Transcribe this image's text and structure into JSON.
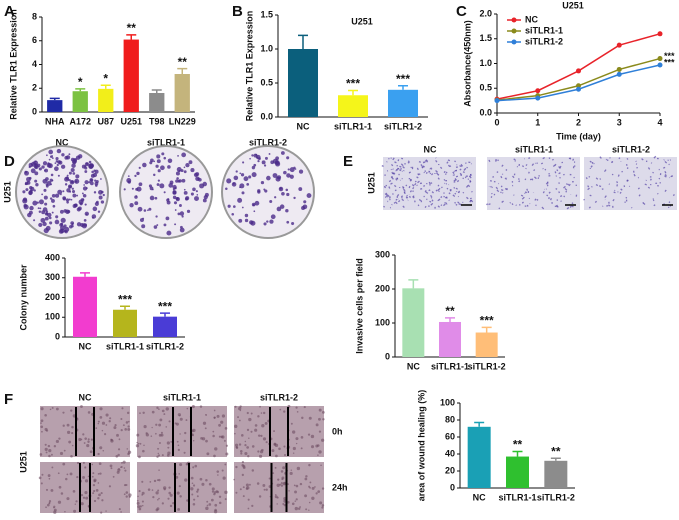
{
  "panel_labels": [
    "A",
    "B",
    "C",
    "D",
    "E",
    "F"
  ],
  "images": {
    "D": {
      "columns": [
        "NC",
        "siTLR1-1",
        "siTLR1-2"
      ],
      "side_label": "U251"
    },
    "E": {
      "columns": [
        "NC",
        "siTLR1-1",
        "siTLR1-2"
      ],
      "side_label": "U251"
    },
    "F": {
      "columns": [
        "NC",
        "siTLR1-1",
        "siTLR1-2"
      ],
      "rows": [
        "0h",
        "24h"
      ],
      "side_label": "U251"
    }
  },
  "chart_data": [
    {
      "type": "bar",
      "y_label": "Relative TLR1 Expression",
      "categories": [
        "NHA",
        "A172",
        "U87",
        "U251",
        "T98",
        "LN229"
      ],
      "values": [
        1.0,
        1.75,
        1.95,
        6.1,
        1.6,
        3.2
      ],
      "errors": [
        0.15,
        0.2,
        0.3,
        0.4,
        0.25,
        0.45
      ],
      "colors": [
        "#1f2aa6",
        "#7cc242",
        "#f2ee1a",
        "#f01c1c",
        "#8c8c8c",
        "#c4b47c"
      ],
      "annotations": [
        null,
        "*",
        "*",
        "**",
        null,
        "**"
      ],
      "ylim": [
        0,
        8
      ],
      "yticks": [
        0,
        2,
        4,
        6,
        8
      ]
    },
    {
      "type": "bar",
      "title": "U251",
      "y_label": "Relative TLR1 Expression",
      "categories": [
        "NC",
        "siTLR1-1",
        "siTLR1-2"
      ],
      "values": [
        1.0,
        0.32,
        0.4
      ],
      "errors": [
        0.2,
        0.07,
        0.06
      ],
      "colors": [
        "#0b5f7c",
        "#f5f51a",
        "#3aa0f0"
      ],
      "annotations": [
        null,
        "***",
        "***"
      ],
      "ylim": [
        0,
        1.5
      ],
      "yticks": [
        {
          "value": 0,
          "label": "0.0"
        },
        {
          "value": 0.5,
          "label": "0.5"
        },
        {
          "value": 1,
          "label": "1.0"
        },
        {
          "value": 1.5,
          "label": "1.5"
        }
      ]
    },
    {
      "type": "line",
      "title": "U251",
      "x_label": "Time (day)",
      "y_label": "Absorbance(450nm)",
      "x": [
        0,
        1,
        2,
        3,
        4
      ],
      "series": [
        {
          "name": "NC",
          "color": "#e8232a",
          "values": [
            0.28,
            0.45,
            0.85,
            1.37,
            1.6
          ]
        },
        {
          "name": "siTLR1-1",
          "color": "#8a8a1c",
          "values": [
            0.26,
            0.35,
            0.55,
            0.88,
            1.1
          ]
        },
        {
          "name": "siTLR1-2",
          "color": "#2f7fd8",
          "values": [
            0.25,
            0.3,
            0.48,
            0.78,
            0.97
          ]
        }
      ],
      "annotations": [
        null,
        "***",
        "***"
      ],
      "xlim": [
        0,
        4
      ],
      "xticks": [
        0,
        1,
        2,
        3,
        4
      ],
      "ylim": [
        0,
        2
      ],
      "yticks": [
        {
          "value": 0,
          "label": "0.0"
        },
        {
          "value": 0.5,
          "label": "0.5"
        },
        {
          "value": 1,
          "label": "1.0"
        },
        {
          "value": 1.5,
          "label": "1.5"
        },
        {
          "value": 2,
          "label": "2.0"
        }
      ],
      "legend": "upper left"
    },
    {
      "type": "bar",
      "y_label": "Colony number",
      "categories": [
        "NC",
        "siTLR1-1",
        "siTLR1-2"
      ],
      "values": [
        305,
        138,
        103
      ],
      "errors": [
        20,
        18,
        18
      ],
      "colors": [
        "#f23ccf",
        "#b5b51c",
        "#4a3cd6"
      ],
      "annotations": [
        null,
        "***",
        "***"
      ],
      "ylim": [
        0,
        400
      ],
      "yticks": [
        0,
        100,
        200,
        300,
        400
      ]
    },
    {
      "type": "bar",
      "y_label": "Invasive cells per field",
      "categories": [
        "NC",
        "siTLR1-1",
        "siTLR1-2"
      ],
      "values": [
        202,
        103,
        72
      ],
      "errors": [
        25,
        12,
        15
      ],
      "colors": [
        "#a8e0b2",
        "#e08ce8",
        "#ffbe78"
      ],
      "annotations": [
        null,
        "**",
        "***"
      ],
      "ylim": [
        0,
        300
      ],
      "yticks": [
        0,
        100,
        200,
        300
      ]
    },
    {
      "type": "bar",
      "y_label": "area of wound healing (%)",
      "categories": [
        "NC",
        "siTLR1-1",
        "siTLR1-2"
      ],
      "values": [
        72,
        37,
        32
      ],
      "errors": [
        5,
        6,
        3
      ],
      "colors": [
        "#1aa0b5",
        "#2fc02f",
        "#8c8c8c"
      ],
      "annotations": [
        null,
        "**",
        "**"
      ],
      "ylim": [
        0,
        100
      ],
      "yticks": [
        0,
        20,
        40,
        60,
        80,
        100
      ]
    }
  ]
}
